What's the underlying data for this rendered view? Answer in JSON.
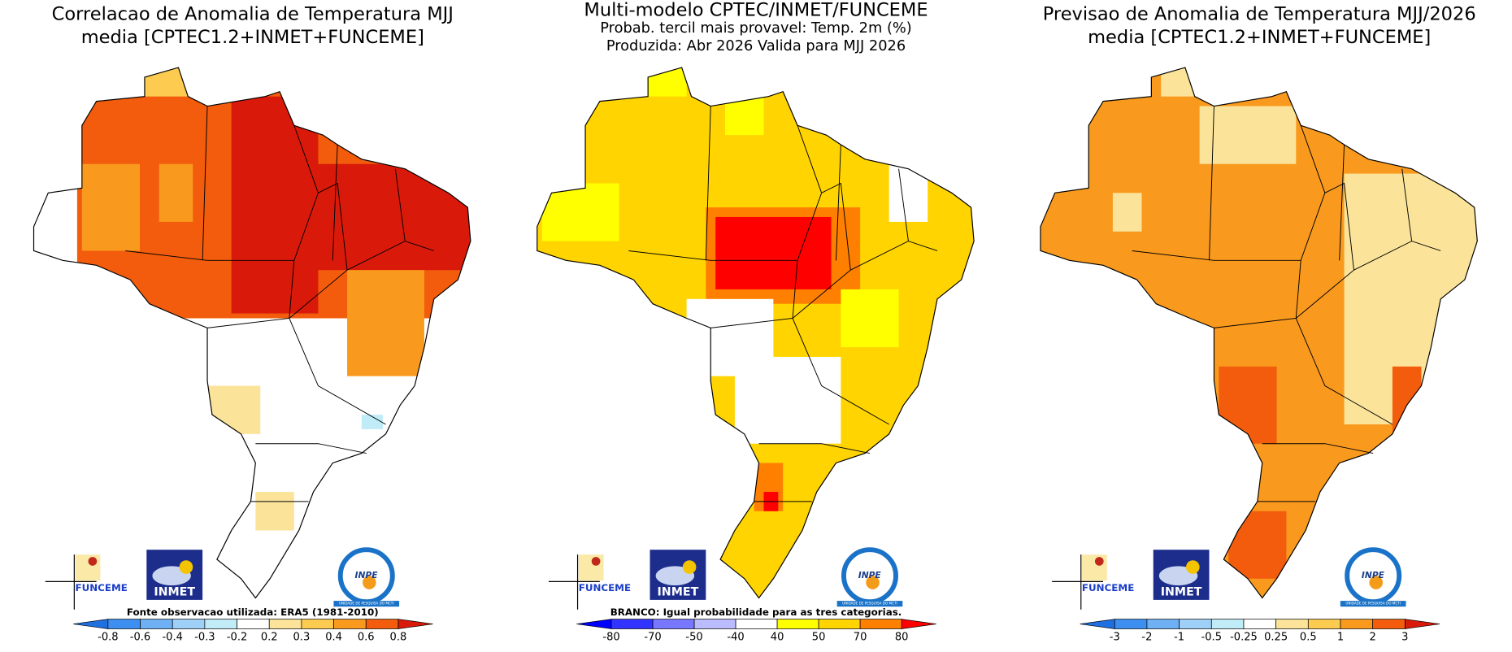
{
  "panels": [
    {
      "title": [
        "Correlacao de Anomalia de Temperatura MJJ",
        "media [CPTEC1.2+INMET+FUNCEME]"
      ],
      "logos": {
        "funceme": "FUNCEME",
        "inmet": "INMET",
        "inpe": "INPE",
        "inpe_sub": "UNIDADE DE PESQUISA DO MCTI"
      },
      "note": "Fonte observacao utilizada: ERA5 (1981-2010)",
      "colorbar": {
        "labels": [
          "-0.8",
          "-0.6",
          "-0.4",
          "-0.3",
          "-0.2",
          "0.2",
          "0.3",
          "0.4",
          "0.6",
          "0.8"
        ],
        "colors": [
          "#1e6fe0",
          "#3c8ff0",
          "#6fb0f5",
          "#9fd0f8",
          "#c0ecf8",
          "#ffffff",
          "#fbe49a",
          "#fccb50",
          "#f99a1e",
          "#f25c0c",
          "#d91a0a"
        ]
      }
    },
    {
      "title": [
        "Multi-modelo CPTEC/INMET/FUNCEME",
        "Probab. tercil mais provavel: Temp. 2m (%)",
        "Produzida: Abr 2026  Valida para MJJ 2026"
      ],
      "logos": {
        "funceme": "FUNCEME",
        "inmet": "INMET",
        "inpe": "INPE",
        "inpe_sub": "UNIDADE DE PESQUISA DO MCTI"
      },
      "note": "BRANCO: Igual probabilidade para as tres categorias.",
      "colorbar": {
        "labels": [
          "-80",
          "-70",
          "-50",
          "-40",
          "40",
          "50",
          "70",
          "80"
        ],
        "colors": [
          "#0000ff",
          "#3333ff",
          "#7777ff",
          "#bbbbff",
          "#ffffff",
          "#ffff00",
          "#ffd400",
          "#ff7f00",
          "#ff0000"
        ]
      }
    },
    {
      "title": [
        "Previsao de Anomalia de Temperatura MJJ/2026",
        "media [CPTEC1.2+INMET+FUNCEME]"
      ],
      "logos": {
        "funceme": "FUNCEME",
        "inmet": "INMET",
        "inpe": "INPE",
        "inpe_sub": "UNIDADE DE PESQUISA DO MCTI"
      },
      "colorbar": {
        "labels": [
          "-3",
          "-2",
          "-1",
          "-0.5",
          "-0.25",
          "0.25",
          "0.5",
          "1",
          "2",
          "3"
        ],
        "colors": [
          "#1e6fe0",
          "#3c8ff0",
          "#6fb0f5",
          "#9fd0f8",
          "#c0ecf8",
          "#ffffff",
          "#fbe49a",
          "#fccb50",
          "#f99a1e",
          "#f25c0c",
          "#d91a0a"
        ]
      }
    }
  ]
}
